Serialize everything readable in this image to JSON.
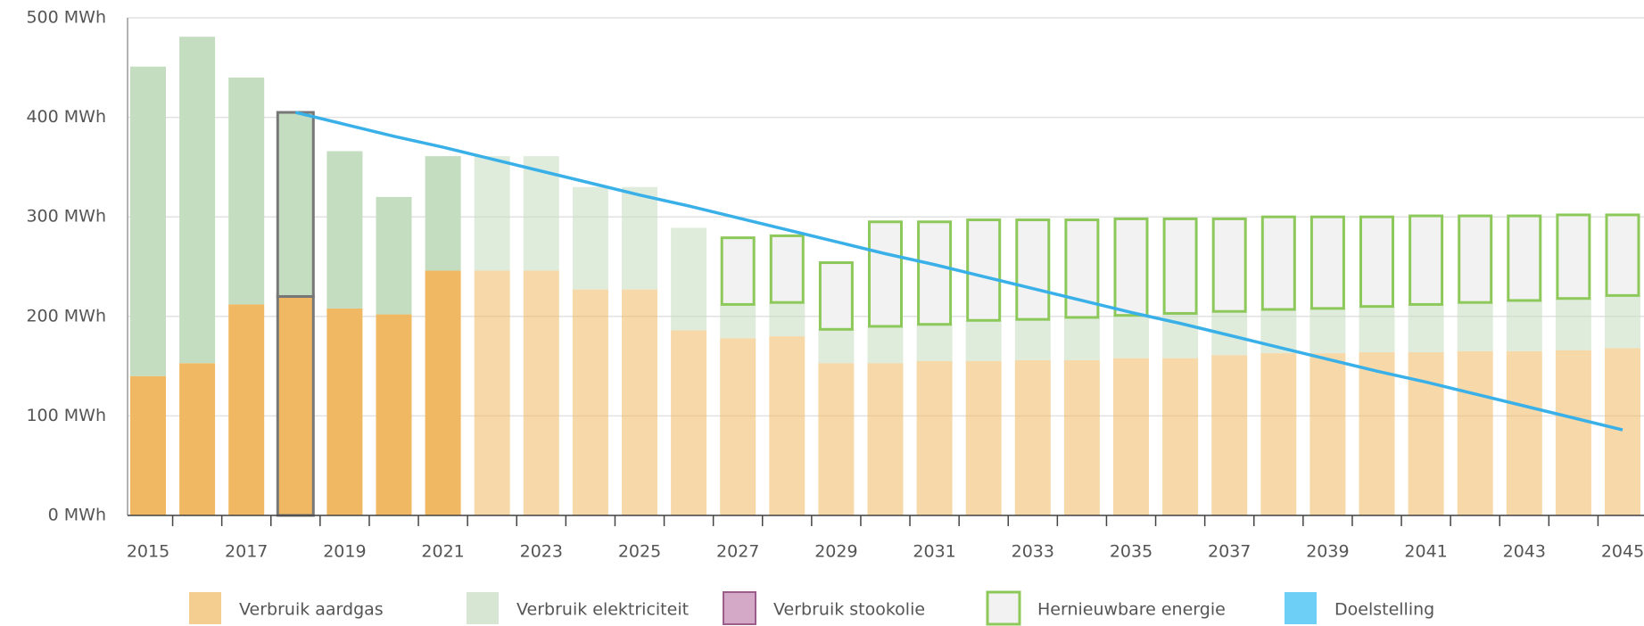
{
  "chart_data": {
    "type": "bar",
    "categories": [
      "2015",
      null,
      "2017",
      null,
      "2019",
      null,
      "2021",
      null,
      "2023",
      null,
      "2025",
      null,
      "2027",
      null,
      "2029",
      null,
      "2031",
      null,
      "2033",
      null,
      "2035",
      null,
      "2037",
      null,
      "2039",
      null,
      "2041",
      null,
      "2043",
      null,
      "2045"
    ],
    "series": [
      {
        "name": "Verbruik aardgas",
        "color": "#f0b862",
        "values": [
          140,
          153,
          212,
          220,
          208,
          202,
          246,
          246,
          246,
          227,
          227,
          186,
          178,
          180,
          153,
          153,
          155,
          155,
          156,
          156,
          158,
          158,
          161,
          163,
          163,
          164,
          164,
          165,
          165,
          166,
          168
        ]
      },
      {
        "name": "Verbruik elektriciteit",
        "color": "#c4dcc0",
        "values": [
          311,
          328,
          228,
          185,
          158,
          118,
          115,
          115,
          115,
          103,
          103,
          103,
          34,
          34,
          34,
          37,
          37,
          41,
          41,
          43,
          43,
          45,
          44,
          44,
          45,
          46,
          48,
          49,
          51,
          52,
          53
        ]
      },
      {
        "name": "Verbruik stookolie",
        "color": "#d4a9c8",
        "values": [
          0,
          0,
          0,
          0,
          0,
          0,
          0,
          0,
          0,
          0,
          0,
          0,
          0,
          0,
          0,
          0,
          0,
          0,
          0,
          0,
          0,
          0,
          0,
          0,
          0,
          0,
          0,
          0,
          0,
          0,
          0
        ]
      },
      {
        "name": "Hernieuwbare energie",
        "color": "#8dc85a",
        "values": [
          null,
          null,
          null,
          null,
          null,
          null,
          null,
          null,
          null,
          null,
          null,
          null,
          67,
          67,
          67,
          105,
          103,
          101,
          100,
          98,
          97,
          95,
          93,
          93,
          92,
          90,
          89,
          87,
          85,
          84,
          81
        ]
      },
      {
        "name": "Doelstelling",
        "color": "#3ab0e8",
        "type": "line",
        "values": [
          null,
          null,
          null,
          405,
          393,
          381,
          370,
          358,
          346,
          334,
          322,
          311,
          299,
          287,
          275,
          263,
          252,
          240,
          228,
          216,
          204,
          193,
          181,
          169,
          157,
          145,
          134,
          122,
          110,
          98,
          86
        ]
      }
    ],
    "stacked": true,
    "ylim": [
      0,
      500
    ],
    "yticks": [
      {
        "value": 0,
        "label": "0 MWh"
      },
      {
        "value": 100,
        "label": "100 MWh"
      },
      {
        "value": 200,
        "label": "200 MWh"
      },
      {
        "value": 300,
        "label": "300 MWh"
      },
      {
        "value": 400,
        "label": "400 MWh"
      },
      {
        "value": 500,
        "label": "500 MWh"
      }
    ],
    "grid": true,
    "legend": "bottom"
  }
}
